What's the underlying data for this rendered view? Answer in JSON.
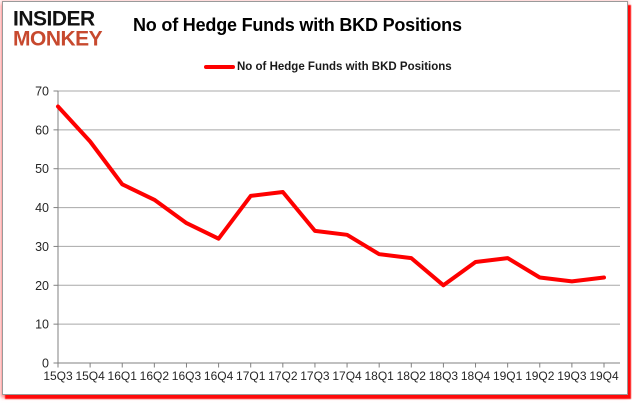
{
  "header": {
    "logo_line1": "INSIDER",
    "logo_line2": "MONKEY",
    "title": "No of Hedge Funds with BKD Positions"
  },
  "legend": {
    "label": "No of Hedge Funds with BKD Positions"
  },
  "colors": {
    "series_line": "#fe0000",
    "gridline": "#a8a8a8",
    "axis": "#808080",
    "tick_label": "#262626",
    "logo_accent": "#c7492e",
    "logo_main": "#111111",
    "frame_shadow": "#ff0a0a"
  },
  "chart_data": {
    "type": "line",
    "title": "No of Hedge Funds with BKD Positions",
    "categories": [
      "15Q3",
      "15Q4",
      "16Q1",
      "16Q2",
      "16Q3",
      "16Q4",
      "17Q1",
      "17Q2",
      "17Q3",
      "17Q4",
      "18Q1",
      "18Q2",
      "18Q3",
      "18Q4",
      "19Q1",
      "19Q2",
      "19Q3",
      "19Q4"
    ],
    "series": [
      {
        "name": "No of Hedge Funds with BKD Positions",
        "values": [
          66,
          57,
          46,
          42,
          36,
          32,
          43,
          44,
          34,
          33,
          28,
          27,
          20,
          26,
          27,
          22,
          21,
          22
        ]
      }
    ],
    "xlabel": "",
    "ylabel": "",
    "ylim": [
      0,
      70
    ],
    "ytick_step": 10,
    "grid": true,
    "legend_position": "top"
  }
}
